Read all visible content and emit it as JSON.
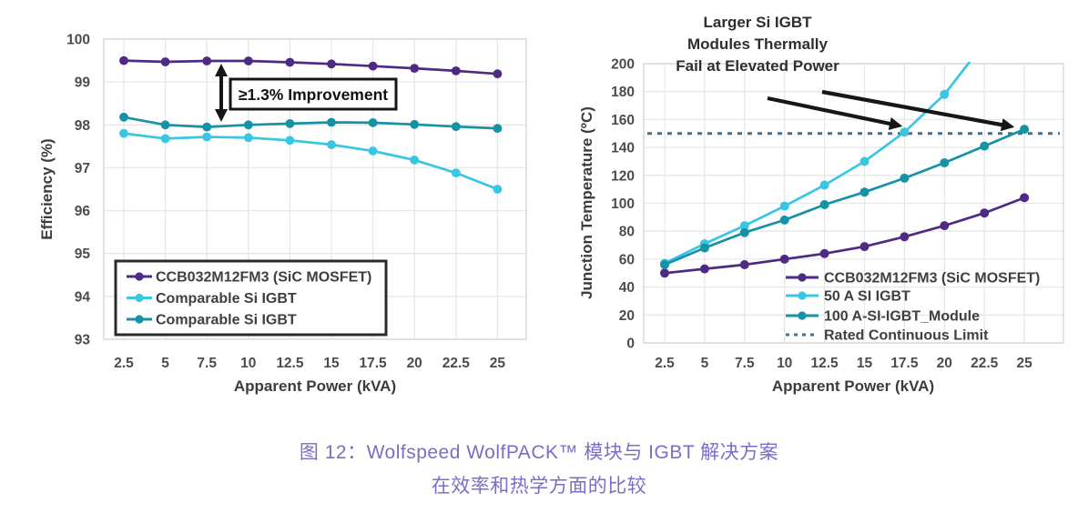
{
  "figure": {
    "caption_line1": "图 12：Wolfspeed WolfPACK™ 模块与 IGBT 解决方案",
    "caption_line2": "在效率和热学方面的比较",
    "caption_color": "#7d6cc8"
  },
  "chart_data": [
    {
      "id": "efficiency",
      "type": "line",
      "title": "",
      "xlabel": "Apparent Power (kVA)",
      "ylabel": "Efficiency (%)",
      "x": [
        2.5,
        5,
        7.5,
        10,
        12.5,
        15,
        17.5,
        20,
        22.5,
        25
      ],
      "ylim": [
        93,
        100
      ],
      "yticks": [
        93,
        94,
        95,
        96,
        97,
        98,
        99,
        100
      ],
      "grid": true,
      "legend_position": "lower-left-boxed",
      "series": [
        {
          "name": "CCB032M12FM3 (SiC MOSFET)",
          "color": "#4e2a82",
          "values": [
            99.5,
            99.47,
            99.49,
            99.49,
            99.46,
            99.42,
            99.37,
            99.32,
            99.26,
            99.19
          ]
        },
        {
          "name": "Comparable Si IGBT",
          "color": "#38c6e2",
          "values": [
            97.8,
            97.68,
            97.72,
            97.7,
            97.64,
            97.54,
            97.39,
            97.18,
            96.88,
            96.5
          ]
        },
        {
          "name": "Comparable Si IGBT",
          "color": "#1692a5",
          "values": [
            98.18,
            98.0,
            97.95,
            98.0,
            98.03,
            98.06,
            98.05,
            98.01,
            97.96,
            97.92
          ]
        }
      ],
      "annotation": {
        "text": "≥1.3% Improvement",
        "style": "boxed-with-double-arrow"
      }
    },
    {
      "id": "thermal",
      "type": "line",
      "title": "",
      "xlabel": "Apparent Power (kVA)",
      "ylabel": "Junction Temperature (ºC)",
      "x": [
        2.5,
        5,
        7.5,
        10,
        12.5,
        15,
        17.5,
        20,
        22.5,
        25
      ],
      "ylim": [
        0,
        200
      ],
      "yticks": [
        0,
        20,
        40,
        60,
        80,
        100,
        120,
        140,
        160,
        180,
        200
      ],
      "grid": true,
      "legend_position": "lower-right",
      "series": [
        {
          "name": "CCB032M12FM3 (SiC MOSFET)",
          "color": "#4e2a82",
          "values": [
            50,
            53,
            56,
            60,
            64,
            69,
            76,
            84,
            93,
            104
          ]
        },
        {
          "name": "50 A SI IGBT",
          "color": "#38c6e2",
          "values": [
            57,
            71,
            84,
            98,
            113,
            130,
            151,
            178,
            215,
            null
          ]
        },
        {
          "name": "100 A-SI-IGBT_Module",
          "color": "#1692a5",
          "values": [
            56,
            68,
            79,
            88,
            99,
            108,
            118,
            129,
            141,
            153
          ]
        }
      ],
      "limit": {
        "name": "Rated Continuous Limit",
        "value": 150,
        "color": "#47708f",
        "style": "dashed"
      },
      "annotation": {
        "lines": [
          "Larger Si IGBT",
          "Modules Thermally",
          "Fail at Elevated Power"
        ],
        "style": "arrows-to-failure-points"
      }
    }
  ]
}
